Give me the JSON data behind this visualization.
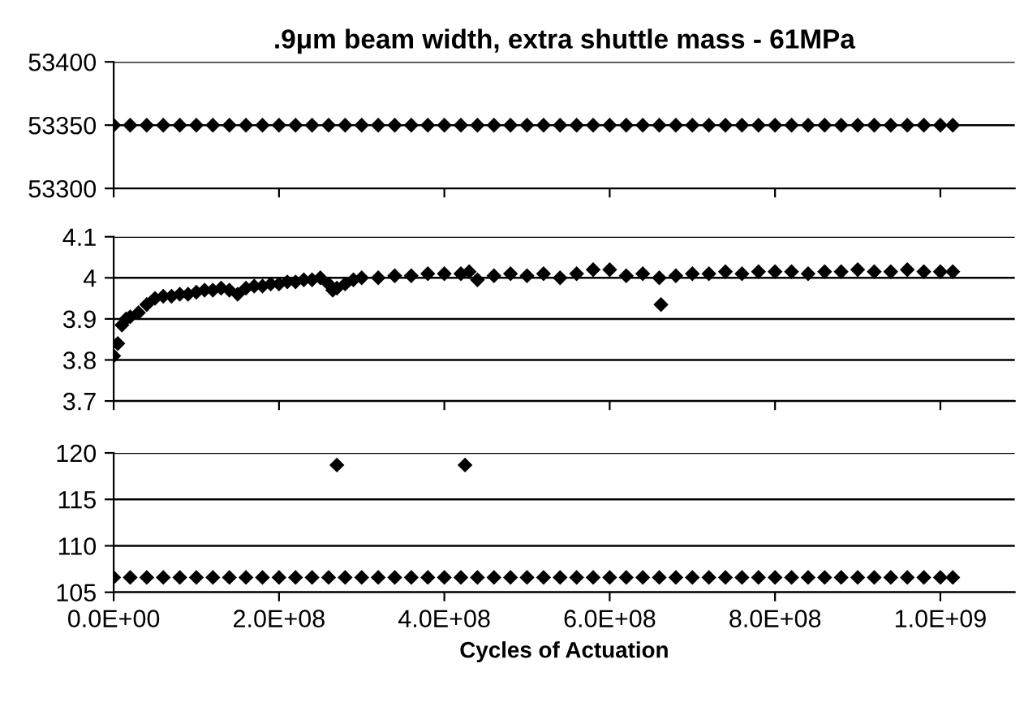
{
  "chart_data": [
    {
      "type": "scatter",
      "title": ".9μm beam width, extra shuttle mass - 61MPa",
      "marker": "diamond",
      "grid": "y",
      "tick_labels": "y",
      "xlim": [
        0,
        1090000000.0
      ],
      "xticks": [
        {
          "value": 0,
          "label": null
        },
        {
          "value": 200000000.0,
          "label": null
        },
        {
          "value": 400000000.0,
          "label": null
        },
        {
          "value": 600000000.0,
          "label": null
        },
        {
          "value": 800000000.0,
          "label": null
        },
        {
          "value": 1000000000.0,
          "label": null
        }
      ],
      "ylim": [
        53300,
        53400
      ],
      "yticks": [
        53300,
        53350,
        53400
      ],
      "series": [
        {
          "color": "#000000",
          "x": [
            0,
            20000000.0,
            40000000.0,
            60000000.0,
            80000000.0,
            100000000.0,
            120000000.0,
            140000000.0,
            160000000.0,
            180000000.0,
            200000000.0,
            220000000.0,
            240000000.0,
            260000000.0,
            280000000.0,
            300000000.0,
            320000000.0,
            340000000.0,
            360000000.0,
            380000000.0,
            400000000.0,
            420000000.0,
            440000000.0,
            460000000.0,
            480000000.0,
            500000000.0,
            520000000.0,
            540000000.0,
            560000000.0,
            580000000.0,
            600000000.0,
            620000000.0,
            640000000.0,
            660000000.0,
            680000000.0,
            700000000.0,
            720000000.0,
            740000000.0,
            760000000.0,
            780000000.0,
            800000000.0,
            820000000.0,
            840000000.0,
            860000000.0,
            880000000.0,
            900000000.0,
            920000000.0,
            940000000.0,
            960000000.0,
            980000000.0,
            1000000000.0,
            1015000000.0
          ],
          "values": [
            53350,
            53350,
            53350,
            53350,
            53350,
            53350,
            53350,
            53350,
            53350,
            53350,
            53350,
            53350,
            53350,
            53350,
            53350,
            53350,
            53350,
            53350,
            53350,
            53350,
            53350,
            53350,
            53350,
            53350,
            53350,
            53350,
            53350,
            53350,
            53350,
            53350,
            53350,
            53350,
            53350,
            53350,
            53350,
            53350,
            53350,
            53350,
            53350,
            53350,
            53350,
            53350,
            53350,
            53350,
            53350,
            53350,
            53350,
            53350,
            53350,
            53350,
            53350,
            53350
          ]
        }
      ]
    },
    {
      "type": "scatter",
      "marker": "diamond",
      "grid": "y",
      "tick_labels": "y",
      "xlim": [
        0,
        1090000000.0
      ],
      "xticks": [
        {
          "value": 0,
          "label": null
        },
        {
          "value": 200000000.0,
          "label": null
        },
        {
          "value": 400000000.0,
          "label": null
        },
        {
          "value": 600000000.0,
          "label": null
        },
        {
          "value": 800000000.0,
          "label": null
        },
        {
          "value": 1000000000.0,
          "label": null
        }
      ],
      "ylim": [
        3.7,
        4.1
      ],
      "yticks": [
        3.7,
        3.8,
        3.9,
        4,
        4.1
      ],
      "series": [
        {
          "color": "#000000",
          "x": [
            0,
            5000000.0,
            10000000.0,
            15000000.0,
            20000000.0,
            30000000.0,
            40000000.0,
            50000000.0,
            60000000.0,
            70000000.0,
            80000000.0,
            90000000.0,
            100000000.0,
            110000000.0,
            120000000.0,
            130000000.0,
            140000000.0,
            150000000.0,
            160000000.0,
            170000000.0,
            180000000.0,
            190000000.0,
            200000000.0,
            210000000.0,
            220000000.0,
            230000000.0,
            240000000.0,
            250000000.0,
            260000000.0,
            265000000.0,
            270000000.0,
            280000000.0,
            290000000.0,
            300000000.0,
            320000000.0,
            340000000.0,
            360000000.0,
            380000000.0,
            400000000.0,
            420000000.0,
            430000000.0,
            440000000.0,
            460000000.0,
            480000000.0,
            500000000.0,
            520000000.0,
            540000000.0,
            560000000.0,
            580000000.0,
            600000000.0,
            620000000.0,
            640000000.0,
            660000000.0,
            662000000.0,
            680000000.0,
            700000000.0,
            720000000.0,
            740000000.0,
            760000000.0,
            780000000.0,
            800000000.0,
            820000000.0,
            840000000.0,
            860000000.0,
            880000000.0,
            900000000.0,
            920000000.0,
            940000000.0,
            960000000.0,
            980000000.0,
            1000000000.0,
            1015000000.0
          ],
          "values": [
            3.81,
            3.84,
            3.885,
            3.9,
            3.905,
            3.915,
            3.935,
            3.95,
            3.955,
            3.955,
            3.96,
            3.96,
            3.965,
            3.97,
            3.97,
            3.975,
            3.97,
            3.96,
            3.975,
            3.98,
            3.98,
            3.985,
            3.985,
            3.99,
            3.99,
            3.995,
            3.995,
            4.0,
            3.985,
            3.97,
            3.975,
            3.985,
            3.995,
            4.0,
            4.0,
            4.005,
            4.005,
            4.01,
            4.01,
            4.01,
            4.015,
            3.995,
            4.005,
            4.01,
            4.005,
            4.01,
            4.0,
            4.01,
            4.02,
            4.02,
            4.005,
            4.01,
            4.0,
            3.935,
            4.005,
            4.01,
            4.01,
            4.015,
            4.01,
            4.015,
            4.015,
            4.015,
            4.01,
            4.015,
            4.015,
            4.02,
            4.015,
            4.015,
            4.02,
            4.015,
            4.015,
            4.015
          ]
        }
      ]
    },
    {
      "type": "scatter",
      "xlabel": "Cycles of Actuation",
      "marker": "diamond",
      "grid": "y",
      "xlim": [
        0,
        1090000000.0
      ],
      "xticks": [
        {
          "value": 0,
          "label": "0.0E+00"
        },
        {
          "value": 200000000.0,
          "label": "2.0E+08"
        },
        {
          "value": 400000000.0,
          "label": "4.0E+08"
        },
        {
          "value": 600000000.0,
          "label": "6.0E+08"
        },
        {
          "value": 800000000.0,
          "label": "8.0E+08"
        },
        {
          "value": 1000000000.0,
          "label": "1.0E+09"
        }
      ],
      "ylim": [
        105,
        120
      ],
      "yticks": [
        105,
        110,
        115,
        120
      ],
      "series": [
        {
          "color": "#000000",
          "x": [
            0,
            20000000.0,
            40000000.0,
            60000000.0,
            80000000.0,
            100000000.0,
            120000000.0,
            140000000.0,
            160000000.0,
            180000000.0,
            200000000.0,
            220000000.0,
            240000000.0,
            260000000.0,
            270000000.0,
            280000000.0,
            300000000.0,
            320000000.0,
            340000000.0,
            360000000.0,
            380000000.0,
            400000000.0,
            420000000.0,
            425000000.0,
            440000000.0,
            460000000.0,
            480000000.0,
            500000000.0,
            520000000.0,
            540000000.0,
            560000000.0,
            580000000.0,
            600000000.0,
            620000000.0,
            640000000.0,
            660000000.0,
            680000000.0,
            700000000.0,
            720000000.0,
            740000000.0,
            760000000.0,
            780000000.0,
            800000000.0,
            820000000.0,
            840000000.0,
            860000000.0,
            880000000.0,
            900000000.0,
            920000000.0,
            940000000.0,
            960000000.0,
            980000000.0,
            1000000000.0,
            1015000000.0
          ],
          "values": [
            106.6,
            106.6,
            106.6,
            106.6,
            106.6,
            106.6,
            106.6,
            106.6,
            106.6,
            106.6,
            106.6,
            106.6,
            106.6,
            106.6,
            118.7,
            106.6,
            106.6,
            106.6,
            106.6,
            106.6,
            106.6,
            106.6,
            106.6,
            118.7,
            106.6,
            106.6,
            106.6,
            106.6,
            106.6,
            106.6,
            106.6,
            106.6,
            106.6,
            106.6,
            106.6,
            106.6,
            106.6,
            106.6,
            106.6,
            106.6,
            106.6,
            106.6,
            106.6,
            106.6,
            106.6,
            106.6,
            106.6,
            106.6,
            106.6,
            106.6,
            106.6,
            106.6,
            106.6,
            106.6
          ]
        }
      ]
    }
  ]
}
